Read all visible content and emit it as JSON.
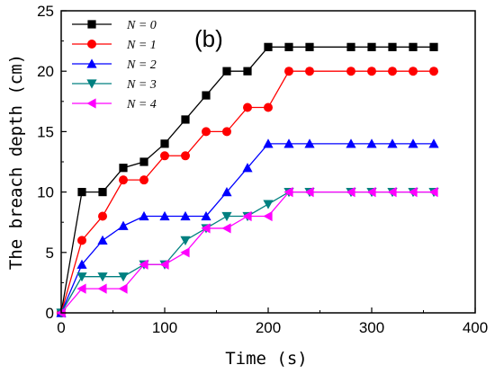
{
  "chart_data": {
    "type": "line",
    "panel_label": "(b)",
    "xlabel": "Time (s)",
    "ylabel": "The breach depth (cm)",
    "xlim": [
      0,
      400
    ],
    "ylim": [
      0,
      25
    ],
    "xticks": [
      0,
      100,
      200,
      300,
      400
    ],
    "yticks": [
      0,
      5,
      10,
      15,
      20,
      25
    ],
    "grid": false,
    "legend_position": "top-left",
    "series": [
      {
        "name": "N = 0",
        "color": "#000000",
        "marker": "square",
        "x": [
          0,
          20,
          40,
          60,
          80,
          100,
          120,
          140,
          160,
          180,
          200,
          220,
          240,
          280,
          300,
          320,
          340,
          360
        ],
        "y": [
          0,
          10,
          10,
          12,
          12.5,
          14,
          16,
          18,
          20,
          20,
          22,
          22,
          22,
          22,
          22,
          22,
          22,
          22
        ]
      },
      {
        "name": "N = 1",
        "color": "#ff0000",
        "marker": "circle",
        "x": [
          0,
          20,
          40,
          60,
          80,
          100,
          120,
          140,
          160,
          180,
          200,
          220,
          240,
          280,
          300,
          320,
          340,
          360
        ],
        "y": [
          0,
          6,
          8,
          11,
          11,
          13,
          13,
          15,
          15,
          17,
          17,
          20,
          20,
          20,
          20,
          20,
          20,
          20
        ]
      },
      {
        "name": "N = 2",
        "color": "#0000ff",
        "marker": "triangle-up",
        "x": [
          0,
          20,
          40,
          60,
          80,
          100,
          120,
          140,
          160,
          180,
          200,
          220,
          240,
          280,
          300,
          320,
          340,
          360
        ],
        "y": [
          0,
          4,
          6,
          7.2,
          8,
          8,
          8,
          8,
          10,
          12,
          14,
          14,
          14,
          14,
          14,
          14,
          14,
          14
        ]
      },
      {
        "name": "N = 3",
        "color": "#008080",
        "marker": "triangle-down",
        "x": [
          0,
          20,
          40,
          60,
          80,
          100,
          120,
          140,
          160,
          180,
          200,
          220,
          240,
          280,
          300,
          320,
          340,
          360
        ],
        "y": [
          0,
          3,
          3,
          3,
          4,
          4,
          6,
          7,
          8,
          8,
          9,
          10,
          10,
          10,
          10,
          10,
          10,
          10
        ]
      },
      {
        "name": "N = 4",
        "color": "#ff00ff",
        "marker": "triangle-left",
        "x": [
          0,
          20,
          40,
          60,
          80,
          100,
          120,
          140,
          160,
          180,
          200,
          220,
          240,
          280,
          300,
          320,
          340,
          360
        ],
        "y": [
          0,
          2,
          2,
          2,
          4,
          4,
          5,
          7,
          7,
          8,
          8,
          10,
          10,
          10,
          10,
          10,
          10,
          10
        ]
      }
    ]
  }
}
